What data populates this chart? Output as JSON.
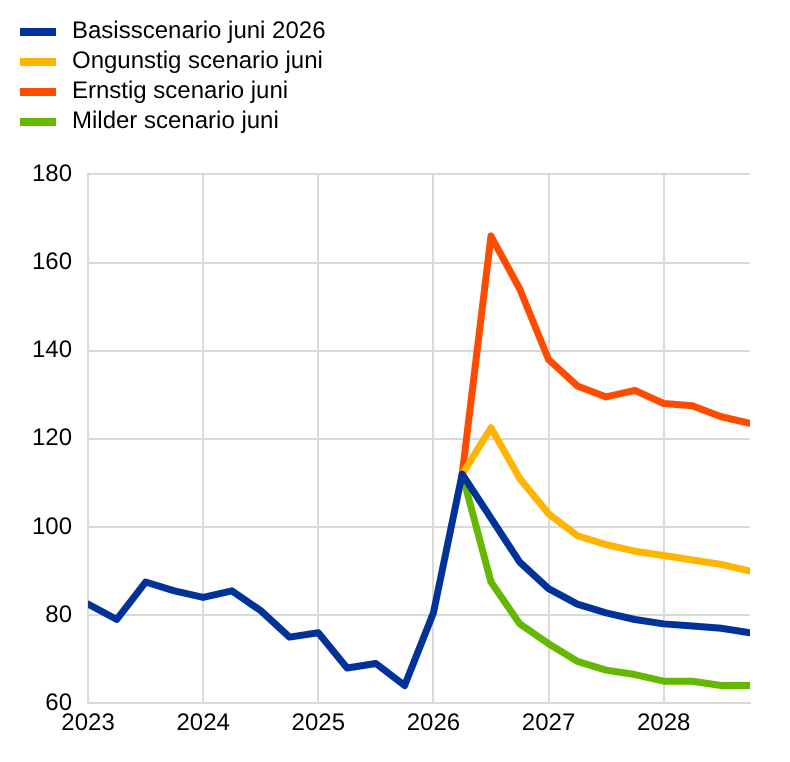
{
  "chart_data": {
    "type": "line",
    "legend": "top left",
    "grid": true,
    "line_style": "solid",
    "marker": "none",
    "xlim": [
      2023,
      2028.75
    ],
    "xticks": [
      2023,
      2024,
      2025,
      2026,
      2027,
      2028
    ],
    "ylim": [
      60,
      180
    ],
    "yticks": [
      60,
      80,
      100,
      120,
      140,
      160,
      180
    ],
    "series": [
      {
        "name": "Basisscenario juni 2026",
        "color": "#003299",
        "x": [
          2023,
          2023.25,
          2023.5,
          2023.75,
          2024,
          2024.25,
          2024.5,
          2024.75,
          2025,
          2025.25,
          2025.5,
          2025.75,
          2026,
          2026.25,
          2026.5,
          2026.75,
          2027,
          2027.25,
          2027.5,
          2027.75,
          2028,
          2028.25,
          2028.5,
          2028.75
        ],
        "values": [
          82.5,
          79,
          87.5,
          85.5,
          84,
          85.5,
          81,
          75,
          76,
          68,
          69,
          64,
          80.5,
          112,
          102,
          92,
          86,
          82.5,
          80.5,
          79,
          78,
          77.5,
          77,
          76
        ]
      },
      {
        "name": "Ongunstig scenario juni",
        "color": "#ffb400",
        "x": [
          2026.25,
          2026.5,
          2026.75,
          2027,
          2027.25,
          2027.5,
          2027.75,
          2028,
          2028.25,
          2028.5,
          2028.75
        ],
        "values": [
          112,
          122.5,
          111,
          103,
          98,
          96,
          94.5,
          93.5,
          92.5,
          91.5,
          90
        ]
      },
      {
        "name": "Ernstig scenario juni",
        "color": "#ff4b00",
        "x": [
          2026.25,
          2026.5,
          2026.75,
          2027,
          2027.25,
          2027.5,
          2027.75,
          2028,
          2028.25,
          2028.5,
          2028.75
        ],
        "values": [
          112,
          166,
          154,
          138,
          132,
          129.5,
          131,
          128,
          127.5,
          125,
          123.5
        ]
      },
      {
        "name": "Milder scenario juni",
        "color": "#65b800",
        "x": [
          2026.25,
          2026.5,
          2026.75,
          2027,
          2027.25,
          2027.5,
          2027.75,
          2028,
          2028.25,
          2028.5,
          2028.75
        ],
        "values": [
          112,
          87.5,
          78,
          73.5,
          69.5,
          67.5,
          66.5,
          65,
          65,
          64,
          64
        ]
      }
    ]
  }
}
